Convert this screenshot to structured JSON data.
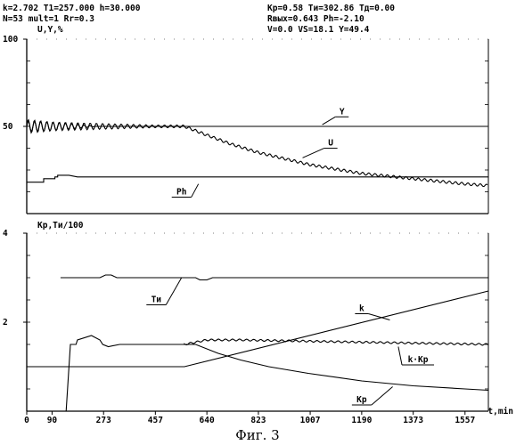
{
  "header": {
    "line1_left": "k=2.702  T1=257.000 h=30.000",
    "line1_right": "Kp=0.58  Tи=302.86  Tд=0.00",
    "line2_left": "N=53  mult=1  Rr=0.3",
    "line2_right": "Rвых=0.643  Ph=-2.10",
    "line3_right": "V=0.0  VS=18.1  Y=49.4"
  },
  "caption": "Фиг. 3",
  "chart_data": [
    {
      "type": "line",
      "panel": "top",
      "ylabel": "U,Y,%",
      "ylim": [
        0,
        100
      ],
      "xlim": [
        0,
        1640
      ],
      "y_ticks": [
        {
          "value": 100,
          "label": "100"
        },
        {
          "value": 50,
          "label": "50"
        }
      ],
      "series": [
        {
          "name": "Y",
          "oscillation": {
            "until": 250,
            "start_amp": 4,
            "period": 22
          },
          "points": [
            [
              0,
              50
            ],
            [
              1640,
              50
            ]
          ]
        },
        {
          "name": "U",
          "oscillation": {
            "until": 1640,
            "start_amp": 3,
            "period": 22,
            "decay_until": 600
          },
          "points": [
            [
              0,
              50
            ],
            [
              560,
              50
            ],
            [
              640,
              45
            ],
            [
              723,
              40
            ],
            [
              823,
              35
            ],
            [
              1007,
              28
            ],
            [
              1190,
              23
            ],
            [
              1373,
              20
            ],
            [
              1557,
              17
            ],
            [
              1640,
              16
            ]
          ]
        },
        {
          "name": "Ph",
          "points": [
            [
              0,
              18
            ],
            [
              60,
              18
            ],
            [
              60,
              20
            ],
            [
              100,
              20
            ],
            [
              100,
              21
            ],
            [
              110,
              21
            ],
            [
              110,
              22
            ],
            [
              150,
              22
            ],
            [
              180,
              21
            ],
            [
              1640,
              21
            ]
          ]
        }
      ],
      "annotations": [
        {
          "text": "Y",
          "at": [
            1120,
            57
          ],
          "arrow_to": [
            1050,
            51
          ]
        },
        {
          "text": "U",
          "at": [
            1080,
            39
          ],
          "arrow_to": [
            980,
            32
          ]
        },
        {
          "text": "Ph",
          "at": [
            550,
            11
          ],
          "arrow_to": [
            610,
            17
          ]
        }
      ]
    },
    {
      "type": "line",
      "panel": "bottom",
      "ylabel": "Kp,Tи/100",
      "ylim": [
        0,
        4
      ],
      "xlim": [
        0,
        1640
      ],
      "xlabel": "t,min",
      "y_ticks": [
        {
          "value": 4,
          "label": "4"
        },
        {
          "value": 2,
          "label": "2"
        }
      ],
      "x_ticks": [
        "0",
        "90",
        "273",
        "457",
        "640",
        "823",
        "1007",
        "1190",
        "1373",
        "1557"
      ],
      "x_tick_values": [
        0,
        90,
        273,
        457,
        640,
        823,
        1007,
        1190,
        1373,
        1557
      ],
      "series": [
        {
          "name": "Tи",
          "points": [
            [
              120,
              3
            ],
            [
              260,
              3
            ],
            [
              280,
              3.06
            ],
            [
              300,
              3.06
            ],
            [
              320,
              3.0
            ],
            [
              600,
              3.0
            ],
            [
              615,
              2.95
            ],
            [
              640,
              2.95
            ],
            [
              660,
              3.0
            ],
            [
              1640,
              3.0
            ]
          ]
        },
        {
          "name": "k",
          "points": [
            [
              0,
              1
            ],
            [
              560,
              1
            ],
            [
              1640,
              2.7
            ]
          ]
        },
        {
          "name": "Kp",
          "points": [
            [
              140,
              0
            ],
            [
              155,
              1.5
            ],
            [
              175,
              1.5
            ],
            [
              180,
              1.6
            ],
            [
              230,
              1.7
            ],
            [
              260,
              1.6
            ],
            [
              270,
              1.5
            ],
            [
              290,
              1.45
            ],
            [
              330,
              1.5
            ],
            [
              560,
              1.5
            ],
            [
              600,
              1.5
            ],
            [
              680,
              1.3
            ],
            [
              760,
              1.15
            ],
            [
              860,
              1.0
            ],
            [
              1000,
              0.85
            ],
            [
              1190,
              0.68
            ],
            [
              1373,
              0.57
            ],
            [
              1557,
              0.5
            ],
            [
              1640,
              0.47
            ]
          ]
        },
        {
          "name": "k·Kp",
          "oscillation": {
            "from": 560,
            "until": 1640,
            "amp": 0.02,
            "period": 25
          },
          "points": [
            [
              560,
              1.5
            ],
            [
              600,
              1.55
            ],
            [
              640,
              1.6
            ],
            [
              760,
              1.6
            ],
            [
              1640,
              1.5
            ]
          ]
        }
      ],
      "annotations": [
        {
          "text": "Tи",
          "at": [
            460,
            2.45
          ],
          "arrow_to": [
            550,
            3.0
          ]
        },
        {
          "text": "k",
          "at": [
            1190,
            2.25
          ],
          "arrow_to": [
            1290,
            2.05
          ]
        },
        {
          "text": "k·Kp",
          "at": [
            1390,
            1.1
          ],
          "arrow_to": [
            1320,
            1.45
          ]
        },
        {
          "text": "Kp",
          "at": [
            1190,
            0.2
          ],
          "arrow_to": [
            1300,
            0.55
          ]
        }
      ]
    }
  ]
}
